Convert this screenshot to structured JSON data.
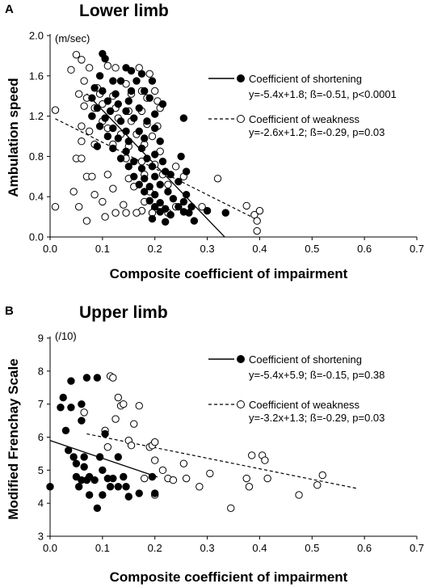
{
  "chart_data": [
    {
      "type": "scatter",
      "panel": "A",
      "title": "Lower limb",
      "unit_note": "(m/sec)",
      "xlabel": "Composite coefficient of impairment",
      "ylabel": "Ambulation speed",
      "xlim": [
        0,
        0.7
      ],
      "ylim": [
        0,
        2.0
      ],
      "xticks": [
        "0.0",
        "0.1",
        "0.2",
        "0.3",
        "0.4",
        "0.5",
        "0.6",
        "0.7"
      ],
      "yticks": [
        "0.0",
        "0.4",
        "0.8",
        "1.2",
        "1.6",
        "2.0"
      ],
      "legend_placement": "right",
      "series": [
        {
          "name": "Coefficient of shortening",
          "equation": "y=-5.4x+1.8; ß=-0.51, p<0.0001",
          "marker": "filled-circle",
          "line_style": "solid",
          "fit": {
            "slope": -5.4,
            "intercept": 1.8,
            "x_range": [
              0.07,
              0.333
            ]
          },
          "points": [
            [
              0.1,
              1.82
            ],
            [
              0.105,
              1.77
            ],
            [
              0.145,
              1.68
            ],
            [
              0.155,
              1.65
            ],
            [
              0.175,
              1.62
            ],
            [
              0.095,
              1.6
            ],
            [
              0.12,
              1.55
            ],
            [
              0.135,
              1.55
            ],
            [
              0.165,
              1.55
            ],
            [
              0.195,
              1.55
            ],
            [
              0.085,
              1.48
            ],
            [
              0.1,
              1.45
            ],
            [
              0.125,
              1.42
            ],
            [
              0.155,
              1.45
            ],
            [
              0.18,
              1.45
            ],
            [
              0.08,
              1.38
            ],
            [
              0.11,
              1.35
            ],
            [
              0.13,
              1.32
            ],
            [
              0.15,
              1.35
            ],
            [
              0.19,
              1.38
            ],
            [
              0.215,
              1.32
            ],
            [
              0.09,
              1.28
            ],
            [
              0.115,
              1.25
            ],
            [
              0.145,
              1.25
            ],
            [
              0.17,
              1.28
            ],
            [
              0.2,
              1.22
            ],
            [
              0.08,
              1.2
            ],
            [
              0.105,
              1.18
            ],
            [
              0.135,
              1.15
            ],
            [
              0.16,
              1.18
            ],
            [
              0.185,
              1.15
            ],
            [
              0.255,
              1.18
            ],
            [
              0.095,
              1.1
            ],
            [
              0.12,
              1.08
            ],
            [
              0.145,
              1.05
            ],
            [
              0.17,
              1.05
            ],
            [
              0.2,
              1.08
            ],
            [
              0.11,
              1.0
            ],
            [
              0.13,
              0.98
            ],
            [
              0.15,
              0.95
            ],
            [
              0.18,
              0.98
            ],
            [
              0.21,
              0.95
            ],
            [
              0.09,
              0.9
            ],
            [
              0.12,
              0.88
            ],
            [
              0.145,
              0.85
            ],
            [
              0.175,
              0.88
            ],
            [
              0.2,
              0.82
            ],
            [
              0.135,
              0.78
            ],
            [
              0.16,
              0.75
            ],
            [
              0.185,
              0.78
            ],
            [
              0.215,
              0.75
            ],
            [
              0.25,
              0.8
            ],
            [
              0.15,
              0.7
            ],
            [
              0.175,
              0.68
            ],
            [
              0.195,
              0.7
            ],
            [
              0.22,
              0.65
            ],
            [
              0.26,
              0.65
            ],
            [
              0.16,
              0.6
            ],
            [
              0.18,
              0.58
            ],
            [
              0.2,
              0.6
            ],
            [
              0.23,
              0.62
            ],
            [
              0.17,
              0.52
            ],
            [
              0.19,
              0.5
            ],
            [
              0.21,
              0.52
            ],
            [
              0.245,
              0.55
            ],
            [
              0.18,
              0.45
            ],
            [
              0.2,
              0.42
            ],
            [
              0.225,
              0.45
            ],
            [
              0.26,
              0.42
            ],
            [
              0.19,
              0.36
            ],
            [
              0.21,
              0.34
            ],
            [
              0.235,
              0.38
            ],
            [
              0.255,
              0.35
            ],
            [
              0.2,
              0.3
            ],
            [
              0.22,
              0.28
            ],
            [
              0.245,
              0.3
            ],
            [
              0.27,
              0.3
            ],
            [
              0.21,
              0.25
            ],
            [
              0.23,
              0.22
            ],
            [
              0.255,
              0.25
            ],
            [
              0.265,
              0.24
            ],
            [
              0.3,
              0.26
            ],
            [
              0.195,
              0.18
            ],
            [
              0.335,
              0.24
            ],
            [
              0.275,
              0.16
            ],
            [
              0.22,
              0.15
            ]
          ]
        },
        {
          "name": "Coefficient of weakness",
          "equation": "y=-2.6x+1.2; ß=-0.29, p=0.03",
          "marker": "open-circle",
          "line_style": "dashed",
          "fit": {
            "slope": -2.6,
            "intercept": 1.2,
            "x_range": [
              0.01,
              0.395
            ]
          },
          "points": [
            [
              0.05,
              1.81
            ],
            [
              0.06,
              1.76
            ],
            [
              0.075,
              1.68
            ],
            [
              0.11,
              1.7
            ],
            [
              0.125,
              1.68
            ],
            [
              0.17,
              1.68
            ],
            [
              0.19,
              1.62
            ],
            [
              0.04,
              1.66
            ],
            [
              0.065,
              1.55
            ],
            [
              0.09,
              1.48
            ],
            [
              0.145,
              1.52
            ],
            [
              0.175,
              1.45
            ],
            [
              0.2,
              1.45
            ],
            [
              0.055,
              1.42
            ],
            [
              0.07,
              1.38
            ],
            [
              0.095,
              1.42
            ],
            [
              0.12,
              1.4
            ],
            [
              0.155,
              1.42
            ],
            [
              0.185,
              1.38
            ],
            [
              0.205,
              1.35
            ],
            [
              0.065,
              1.3
            ],
            [
              0.085,
              1.28
            ],
            [
              0.1,
              1.32
            ],
            [
              0.125,
              1.28
            ],
            [
              0.15,
              1.25
            ],
            [
              0.175,
              1.25
            ],
            [
              0.21,
              1.28
            ],
            [
              0.01,
              1.26
            ],
            [
              0.08,
              1.2
            ],
            [
              0.1,
              1.15
            ],
            [
              0.13,
              1.18
            ],
            [
              0.155,
              1.15
            ],
            [
              0.185,
              1.12
            ],
            [
              0.205,
              1.1
            ],
            [
              0.06,
              1.1
            ],
            [
              0.075,
              1.05
            ],
            [
              0.11,
              1.08
            ],
            [
              0.135,
              1.02
            ],
            [
              0.165,
              1.02
            ],
            [
              0.195,
              1.0
            ],
            [
              0.06,
              0.95
            ],
            [
              0.085,
              0.92
            ],
            [
              0.12,
              0.92
            ],
            [
              0.15,
              0.9
            ],
            [
              0.18,
              0.92
            ],
            [
              0.21,
              0.85
            ],
            [
              0.05,
              0.78
            ],
            [
              0.06,
              0.78
            ],
            [
              0.145,
              0.78
            ],
            [
              0.175,
              0.75
            ],
            [
              0.2,
              0.72
            ],
            [
              0.24,
              0.7
            ],
            [
              0.07,
              0.6
            ],
            [
              0.08,
              0.6
            ],
            [
              0.11,
              0.62
            ],
            [
              0.15,
              0.58
            ],
            [
              0.18,
              0.62
            ],
            [
              0.215,
              0.62
            ],
            [
              0.255,
              0.6
            ],
            [
              0.32,
              0.58
            ],
            [
              0.045,
              0.45
            ],
            [
              0.085,
              0.42
            ],
            [
              0.12,
              0.48
            ],
            [
              0.16,
              0.5
            ],
            [
              0.19,
              0.45
            ],
            [
              0.225,
              0.52
            ],
            [
              0.01,
              0.3
            ],
            [
              0.055,
              0.3
            ],
            [
              0.1,
              0.35
            ],
            [
              0.14,
              0.32
            ],
            [
              0.18,
              0.35
            ],
            [
              0.21,
              0.3
            ],
            [
              0.24,
              0.3
            ],
            [
              0.29,
              0.3
            ],
            [
              0.07,
              0.16
            ],
            [
              0.105,
              0.2
            ],
            [
              0.145,
              0.24
            ],
            [
              0.175,
              0.26
            ],
            [
              0.2,
              0.28
            ],
            [
              0.225,
              0.24
            ],
            [
              0.375,
              0.31
            ],
            [
              0.39,
              0.22
            ],
            [
              0.4,
              0.26
            ],
            [
              0.125,
              0.24
            ],
            [
              0.165,
              0.24
            ],
            [
              0.195,
              0.24
            ],
            [
              0.395,
              0.16
            ],
            [
              0.395,
              0.06
            ]
          ]
        }
      ]
    },
    {
      "type": "scatter",
      "panel": "B",
      "title": "Upper limb",
      "unit_note": "(/10)",
      "xlabel": "Composite coefficient of impairment",
      "ylabel": "Modified Frenchay Scale",
      "xlim": [
        0,
        0.7
      ],
      "ylim": [
        3,
        9
      ],
      "xticks": [
        "0.0",
        "0.1",
        "0.2",
        "0.3",
        "0.4",
        "0.5",
        "0.6",
        "0.7"
      ],
      "yticks": [
        "3",
        "4",
        "5",
        "6",
        "7",
        "8",
        "9"
      ],
      "legend_placement": "right",
      "series": [
        {
          "name": "Coefficient of shortening",
          "equation": "y=-5.4x+5.9; ß=-0.15, p=0.38",
          "marker": "filled-circle",
          "line_style": "solid",
          "fit": {
            "slope": -5.4,
            "intercept": 5.9,
            "x_range": [
              0.0,
              0.205
            ]
          },
          "points": [
            [
              0.0,
              4.5
            ],
            [
              0.02,
              6.9
            ],
            [
              0.025,
              7.2
            ],
            [
              0.03,
              6.2
            ],
            [
              0.035,
              5.6
            ],
            [
              0.04,
              7.7
            ],
            [
              0.04,
              6.9
            ],
            [
              0.045,
              5.4
            ],
            [
              0.05,
              5.2
            ],
            [
              0.05,
              4.8
            ],
            [
              0.055,
              4.5
            ],
            [
              0.06,
              4.7
            ],
            [
              0.06,
              6.5
            ],
            [
              0.06,
              7.0
            ],
            [
              0.065,
              5.4
            ],
            [
              0.065,
              5.1
            ],
            [
              0.07,
              4.7
            ],
            [
              0.07,
              7.8
            ],
            [
              0.075,
              4.8
            ],
            [
              0.075,
              4.25
            ],
            [
              0.085,
              4.7
            ],
            [
              0.09,
              3.85
            ],
            [
              0.09,
              7.8
            ],
            [
              0.095,
              5.4
            ],
            [
              0.1,
              5.0
            ],
            [
              0.1,
              4.25
            ],
            [
              0.105,
              6.1
            ],
            [
              0.11,
              4.75
            ],
            [
              0.115,
              4.5
            ],
            [
              0.12,
              4.75
            ],
            [
              0.13,
              5.4
            ],
            [
              0.13,
              4.5
            ],
            [
              0.14,
              4.8
            ],
            [
              0.145,
              4.5
            ],
            [
              0.15,
              4.2
            ],
            [
              0.17,
              4.3
            ],
            [
              0.195,
              4.8
            ],
            [
              0.2,
              4.3
            ]
          ]
        },
        {
          "name": "Coefficient of weakness",
          "equation": "y=-3.2x+1.3; ß=-0.29, p=0.03",
          "marker": "open-circle",
          "line_style": "dashed",
          "fit": {
            "slope": -3.2,
            "intercept": 1.3,
            "x_range": [
              0.07,
              0.585
            ],
            "y_range_drawn": [
              6.1,
              4.45
            ]
          },
          "points": [
            [
              0.065,
              6.75
            ],
            [
              0.105,
              6.2
            ],
            [
              0.11,
              5.7
            ],
            [
              0.115,
              7.85
            ],
            [
              0.12,
              7.8
            ],
            [
              0.125,
              6.55
            ],
            [
              0.13,
              7.2
            ],
            [
              0.135,
              6.95
            ],
            [
              0.14,
              7.0
            ],
            [
              0.15,
              5.9
            ],
            [
              0.155,
              5.75
            ],
            [
              0.16,
              6.4
            ],
            [
              0.17,
              6.95
            ],
            [
              0.18,
              4.75
            ],
            [
              0.19,
              5.7
            ],
            [
              0.195,
              5.75
            ],
            [
              0.2,
              5.85
            ],
            [
              0.2,
              5.3
            ],
            [
              0.2,
              4.25
            ],
            [
              0.215,
              5.0
            ],
            [
              0.225,
              4.75
            ],
            [
              0.235,
              4.7
            ],
            [
              0.255,
              5.2
            ],
            [
              0.26,
              4.75
            ],
            [
              0.285,
              4.5
            ],
            [
              0.305,
              4.9
            ],
            [
              0.345,
              3.85
            ],
            [
              0.375,
              4.75
            ],
            [
              0.38,
              4.5
            ],
            [
              0.385,
              5.45
            ],
            [
              0.405,
              5.45
            ],
            [
              0.41,
              5.3
            ],
            [
              0.415,
              4.75
            ],
            [
              0.475,
              4.25
            ],
            [
              0.51,
              4.55
            ],
            [
              0.52,
              4.85
            ]
          ]
        }
      ]
    }
  ]
}
